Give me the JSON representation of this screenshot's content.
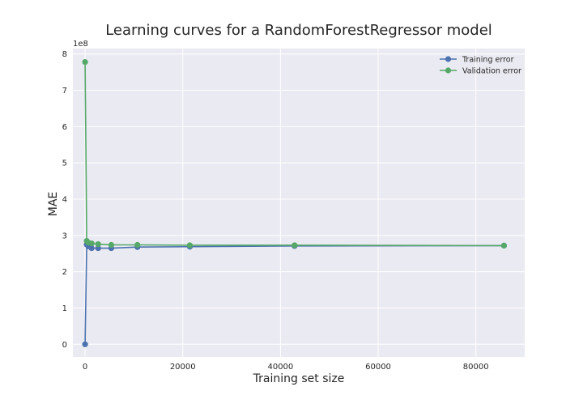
{
  "chart_data": {
    "type": "line",
    "title": "Learning curves for a RandomForestRegressor model",
    "xlabel": "Training set size",
    "ylabel": "MAE",
    "y_offset_label": "1e8",
    "xlim": [
      -2500,
      90000
    ],
    "ylim": [
      -0.35,
      8.15
    ],
    "y_scale_factor": 100000000,
    "xticks": [
      0,
      20000,
      40000,
      60000,
      80000
    ],
    "xtick_labels": [
      "0",
      "20000",
      "40000",
      "60000",
      "80000"
    ],
    "yticks": [
      0,
      1,
      2,
      3,
      4,
      5,
      6,
      7,
      8
    ],
    "ytick_labels": [
      "0",
      "1",
      "2",
      "3",
      "4",
      "5",
      "6",
      "7",
      "8"
    ],
    "grid": true,
    "legend_position": "top-right",
    "x": [
      1,
      335,
      670,
      1340,
      2680,
      5360,
      10720,
      21440,
      42880,
      85760
    ],
    "series": [
      {
        "name": "Training error",
        "color": "#4c72b0",
        "values": [
          0.0,
          2.75,
          2.7,
          2.65,
          2.65,
          2.65,
          2.68,
          2.69,
          2.71,
          2.72
        ]
      },
      {
        "name": "Validation error",
        "color": "#55a868",
        "values": [
          7.78,
          2.85,
          2.8,
          2.78,
          2.76,
          2.74,
          2.74,
          2.73,
          2.73,
          2.72
        ]
      }
    ]
  }
}
